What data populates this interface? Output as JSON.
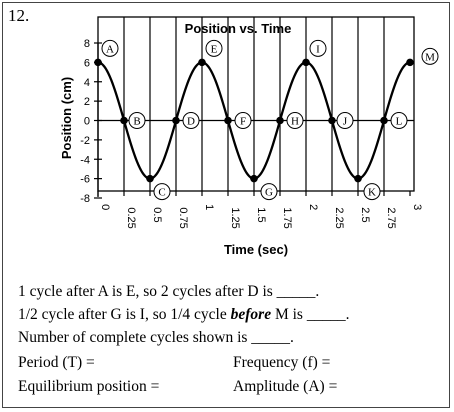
{
  "question_number": "12.",
  "chart_data": {
    "type": "line",
    "title": "Position vs. Time",
    "xlabel": "Time (sec)",
    "ylabel": "Position (cm)",
    "xlim": [
      0,
      3
    ],
    "ylim": [
      -8,
      8
    ],
    "x_ticks": [
      "0",
      "0.25",
      "0.5",
      "0.75",
      "1",
      "1.25",
      "1.5",
      "1.75",
      "2",
      "2.25",
      "2.5",
      "2.75",
      "3"
    ],
    "y_ticks": [
      "8",
      "6",
      "4",
      "2",
      "0",
      "-2",
      "-4",
      "-6",
      "-8"
    ],
    "grid": true,
    "series": [
      {
        "amplitude": 6,
        "period": 1,
        "values_at_x": {
          "0": 6,
          "0.25": 0,
          "0.5": -6,
          "0.75": 0,
          "1": 6,
          "1.25": 0,
          "1.5": -6,
          "1.75": 0,
          "2": 6,
          "2.25": 0,
          "2.5": -6,
          "2.75": 0,
          "3": 6
        }
      }
    ],
    "points": [
      {
        "label": "A",
        "x": 0,
        "y": 6
      },
      {
        "label": "B",
        "x": 0.25,
        "y": 0
      },
      {
        "label": "C",
        "x": 0.5,
        "y": -6
      },
      {
        "label": "D",
        "x": 0.75,
        "y": 0
      },
      {
        "label": "E",
        "x": 1,
        "y": 6
      },
      {
        "label": "F",
        "x": 1.25,
        "y": 0
      },
      {
        "label": "G",
        "x": 1.5,
        "y": -6
      },
      {
        "label": "H",
        "x": 1.75,
        "y": 0
      },
      {
        "label": "I",
        "x": 2,
        "y": 6
      },
      {
        "label": "J",
        "x": 2.25,
        "y": 0
      },
      {
        "label": "K",
        "x": 2.5,
        "y": -6
      },
      {
        "label": "L",
        "x": 2.75,
        "y": 0
      },
      {
        "label": "M",
        "x": 3,
        "y": 6
      }
    ]
  },
  "questions": {
    "q1": "1 cycle after A is E, so 2 cycles after D is _____.",
    "q2_pre": "1/2 cycle after G is I, so 1/4 cycle ",
    "q2_em": "before",
    "q2_post": " M is _____.",
    "q3": "Number of complete cycles shown is _____.",
    "period": "Period (T) =",
    "frequency": "Frequency (f) =",
    "equilibrium": "Equilibrium position =",
    "amplitude": "Amplitude (A) ="
  }
}
